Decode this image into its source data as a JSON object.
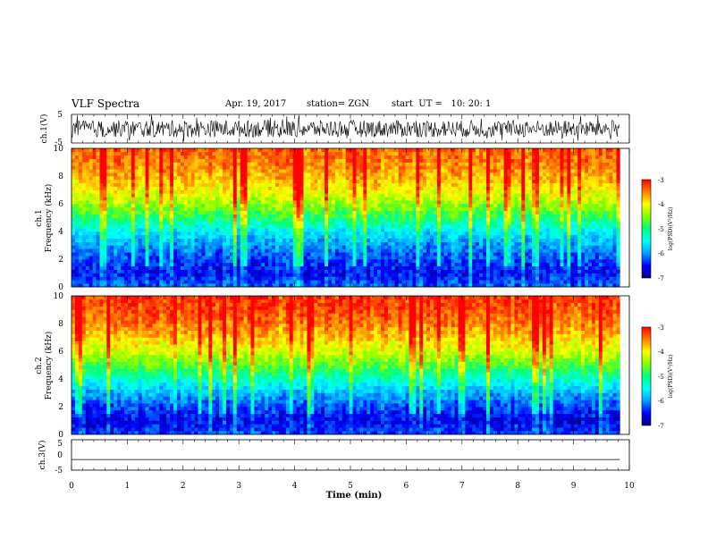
{
  "header": {
    "title": "VLF Spectra",
    "date": "Apr. 19, 2017",
    "station": "station= ZGN",
    "start": "start  UT =   10: 20: 1"
  },
  "chart_data": [
    {
      "type": "line",
      "name": "ch1-waveform",
      "ylabel": "ch.1(V)",
      "ylim": [
        -5,
        5
      ],
      "yticks": [
        "5",
        "-5"
      ],
      "xlim": [
        0,
        10
      ],
      "approx_amplitude_range": [
        -3,
        3
      ]
    },
    {
      "type": "heatmap",
      "name": "ch1-spectrogram",
      "ylabel": "ch.1 Frequency (kHz)",
      "ylabel_line1": "ch.1",
      "ylabel_line2": "Frequency  (kHz)",
      "xlim": [
        0,
        10
      ],
      "ylim": [
        0,
        10
      ],
      "yticks": [
        "0",
        "2",
        "4",
        "6",
        "8",
        "10"
      ],
      "data_end_min": 9.83,
      "colorbar": {
        "label": "log(PSD)(V²/Hz)",
        "range": [
          -7,
          -3
        ],
        "ticks": [
          "-3",
          "-4",
          "-5",
          "-6",
          "-7"
        ]
      },
      "profile_freq_khz": [
        0,
        1,
        2,
        3,
        4,
        5,
        6,
        7,
        8,
        9,
        10
      ],
      "profile_log_psd": [
        -6.2,
        -6.5,
        -6.3,
        -6.0,
        -5.6,
        -4.9,
        -4.4,
        -4.0,
        -3.7,
        -3.5,
        -3.4
      ]
    },
    {
      "type": "heatmap",
      "name": "ch2-spectrogram",
      "ylabel": "ch.2 Frequency (kHz)",
      "ylabel_line1": "ch.2",
      "ylabel_line2": "Frequency  (kHz)",
      "xlim": [
        0,
        10
      ],
      "ylim": [
        0,
        10
      ],
      "yticks": [
        "0",
        "2",
        "4",
        "6",
        "8",
        "10"
      ],
      "data_end_min": 9.83,
      "colorbar": {
        "label": "log(PSD)(V²/Hz)",
        "range": [
          -7,
          -3
        ],
        "ticks": [
          "-3",
          "-4",
          "-5",
          "-6",
          "-7"
        ]
      },
      "profile_freq_khz": [
        0,
        1,
        2,
        3,
        4,
        5,
        6,
        7,
        8,
        9,
        10
      ],
      "profile_log_psd": [
        -6.3,
        -6.6,
        -6.3,
        -5.9,
        -5.3,
        -4.7,
        -4.2,
        -3.8,
        -3.5,
        -3.3,
        -3.2
      ]
    },
    {
      "type": "line",
      "name": "ch3-waveform",
      "ylabel": "ch.3(V)",
      "ylim": [
        -5,
        5
      ],
      "yticks": [
        "5",
        "0",
        "-5"
      ],
      "xlim": [
        0,
        10
      ],
      "values_constant": -1.5
    }
  ],
  "xaxis": {
    "label": "Time  (min)",
    "ticks": [
      "0",
      "1",
      "2",
      "3",
      "4",
      "5",
      "6",
      "7",
      "8",
      "9",
      "10"
    ]
  },
  "colors": {
    "colormap": [
      "#000080",
      "#0000ff",
      "#00a0ff",
      "#00ffff",
      "#00ff80",
      "#80ff00",
      "#ffff00",
      "#ff8000",
      "#ff0000"
    ]
  }
}
